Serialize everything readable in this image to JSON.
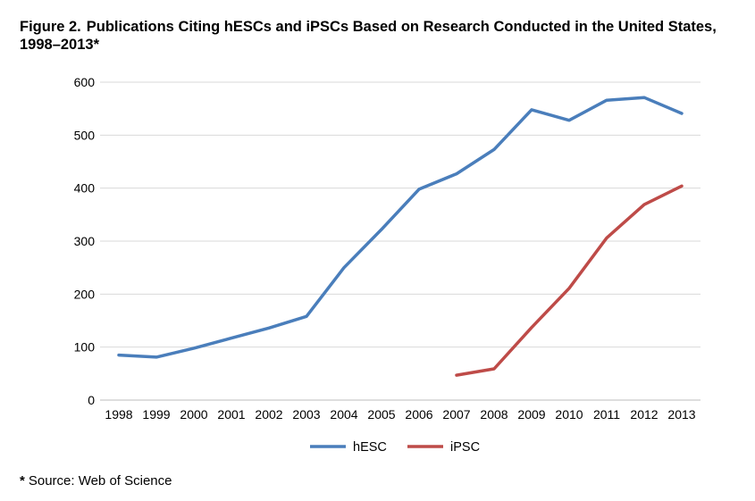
{
  "figure": {
    "number": "Figure 2.",
    "title": "Publications Citing hESCs and iPSCs Based on Research Conducted in the United States, 1998–2013*"
  },
  "footnote": {
    "marker": "*",
    "text": "Source: Web of Science"
  },
  "chart_data": {
    "type": "line",
    "x": [
      1998,
      1999,
      2000,
      2001,
      2002,
      2003,
      2004,
      2005,
      2006,
      2007,
      2008,
      2009,
      2010,
      2011,
      2012,
      2013
    ],
    "x_tick_labels": [
      "1998",
      "1999",
      "2000",
      "2001",
      "2002",
      "2003",
      "2004",
      "2005",
      "2006",
      "2007",
      "2008",
      "2009",
      "2010",
      "2011",
      "2012",
      "2013"
    ],
    "ylim": [
      0,
      600
    ],
    "y_ticks": [
      0,
      100,
      200,
      300,
      400,
      500,
      600
    ],
    "grid": "horizontal",
    "legend_position": "bottom",
    "series": [
      {
        "name": "hESC",
        "color": "#4a7ebb",
        "values": [
          85,
          81,
          98,
          117,
          136,
          158,
          250,
          322,
          398,
          427,
          473,
          548,
          528,
          566,
          571,
          541
        ]
      },
      {
        "name": "iPSC",
        "color": "#be4b48",
        "values": [
          null,
          null,
          null,
          null,
          null,
          null,
          null,
          null,
          null,
          47,
          59,
          137,
          211,
          306,
          369,
          404
        ]
      }
    ]
  }
}
